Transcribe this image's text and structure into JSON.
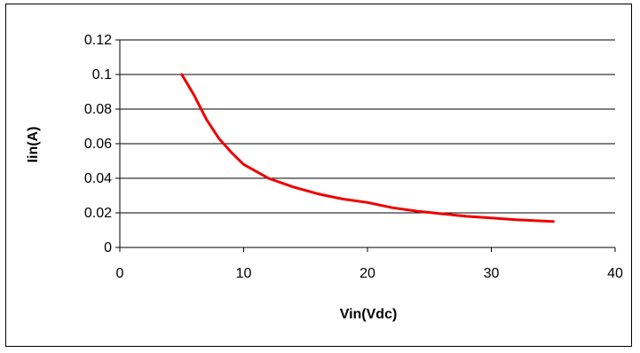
{
  "chart_data": {
    "type": "line",
    "title": "",
    "xlabel": "Vin(Vdc)",
    "ylabel": "Iin(A)",
    "xlim": [
      0,
      40
    ],
    "ylim": [
      0,
      0.12
    ],
    "xticks": [
      "0",
      "10",
      "20",
      "30",
      "40"
    ],
    "yticks": [
      "0",
      "0.02",
      "0.04",
      "0.06",
      "0.08",
      "0.1",
      "0.12"
    ],
    "grid": "horizontal",
    "legend": "none",
    "series": [
      {
        "color": "#ee0000",
        "points": [
          [
            5,
            0.1
          ],
          [
            6,
            0.088
          ],
          [
            7,
            0.074
          ],
          [
            8,
            0.063
          ],
          [
            9,
            0.055
          ],
          [
            10,
            0.048
          ],
          [
            11,
            0.044
          ],
          [
            12,
            0.04
          ],
          [
            14,
            0.035
          ],
          [
            16,
            0.031
          ],
          [
            18,
            0.028
          ],
          [
            20,
            0.026
          ],
          [
            22,
            0.023
          ],
          [
            24,
            0.021
          ],
          [
            26,
            0.0195
          ],
          [
            28,
            0.018
          ],
          [
            30,
            0.017
          ],
          [
            32,
            0.016
          ],
          [
            35,
            0.015
          ]
        ]
      }
    ]
  }
}
